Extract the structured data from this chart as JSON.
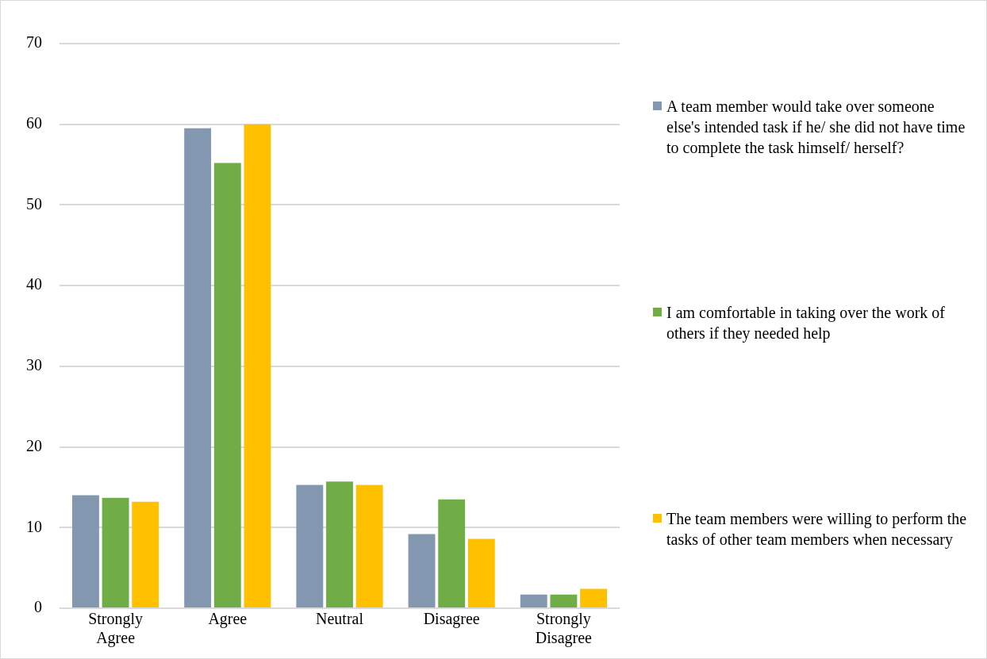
{
  "chart_data": {
    "type": "bar",
    "categories": [
      "Strongly Agree",
      "Agree",
      "Neutral",
      "Disagree",
      "Strongly Disagree"
    ],
    "series": [
      {
        "name": "A team member would take over someone else's intended task if he/ she did not have time to complete the task himself/ herself?",
        "color": "#8497b0",
        "values": [
          14,
          59.5,
          15.3,
          9.2,
          1.7
        ]
      },
      {
        "name": "I am comfortable in taking over the work of others if they needed help",
        "color": "#70ad47",
        "values": [
          13.7,
          55.2,
          15.7,
          13.5,
          1.7
        ]
      },
      {
        "name": "The team members were willing to perform the tasks of other team members when necessary",
        "color": "#ffc000",
        "values": [
          13.2,
          60,
          15.3,
          8.6,
          2.4
        ]
      }
    ],
    "ylim": [
      0,
      70
    ],
    "yticks": [
      0,
      10,
      20,
      30,
      40,
      50,
      60,
      70
    ],
    "grid": "y",
    "legend": "right"
  }
}
